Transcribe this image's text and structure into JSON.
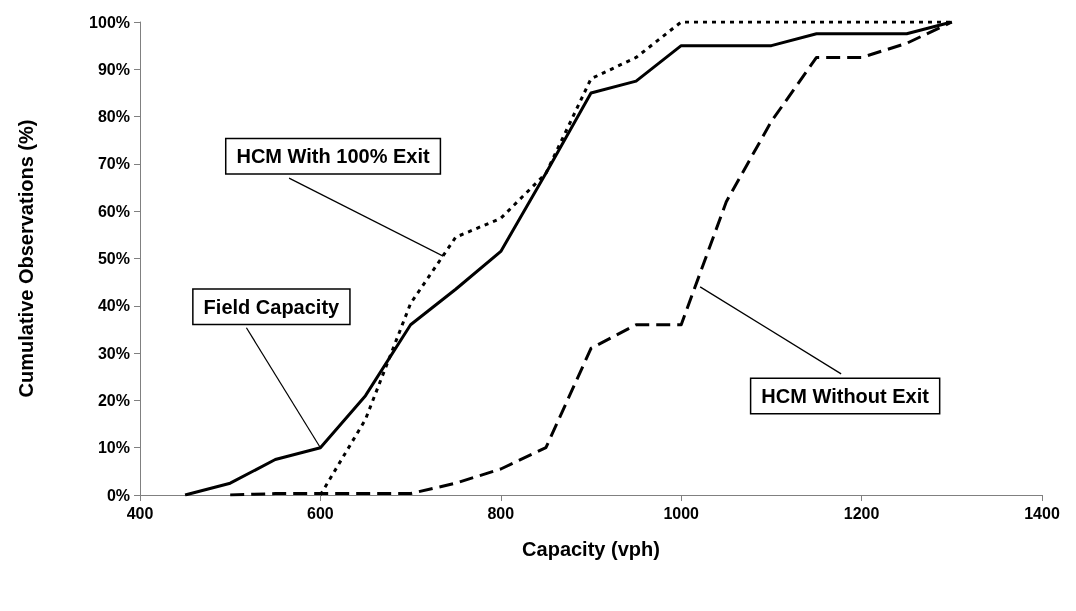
{
  "chart_data": {
    "type": "line",
    "xlabel": "Capacity (vph)",
    "ylabel": "Cumulative Observations (%)",
    "xlim": [
      400,
      1400
    ],
    "xticks": [
      400,
      600,
      800,
      1000,
      1200,
      1400
    ],
    "ylim": [
      0,
      100
    ],
    "yticks": [
      {
        "value": 0,
        "label": "0%"
      },
      {
        "value": 10,
        "label": "10%"
      },
      {
        "value": 20,
        "label": "20%"
      },
      {
        "value": 30,
        "label": "30%"
      },
      {
        "value": 40,
        "label": "40%"
      },
      {
        "value": 50,
        "label": "50%"
      },
      {
        "value": 60,
        "label": "60%"
      },
      {
        "value": 70,
        "label": "70%"
      },
      {
        "value": 80,
        "label": "80%"
      },
      {
        "value": 90,
        "label": "90%"
      },
      {
        "value": 100,
        "label": "100%"
      }
    ],
    "grid": false,
    "marker": "none",
    "series": [
      {
        "color": "#000000",
        "line_style": "solid",
        "x": [
          450,
          500,
          550,
          600,
          650,
          700,
          750,
          800,
          850,
          900,
          950,
          1000,
          1050,
          1100,
          1150,
          1200,
          1250,
          1300
        ],
        "values": [
          0,
          2.5,
          7.5,
          10,
          21,
          36,
          43.5,
          51.5,
          68,
          85,
          87.5,
          95,
          95,
          95,
          97.5,
          97.5,
          97.5,
          100
        ]
      },
      {
        "color": "#000000",
        "line_style": "dotted",
        "x": [
          600,
          650,
          700,
          750,
          800,
          850,
          900,
          950,
          1000,
          1050,
          1100,
          1150,
          1200,
          1250,
          1300
        ],
        "values": [
          0,
          16,
          40.5,
          54.5,
          58.5,
          68,
          88,
          92.5,
          100,
          100,
          100,
          100,
          100,
          100,
          100
        ]
      },
      {
        "color": "#000000",
        "line_style": "dashed",
        "x": [
          500,
          550,
          600,
          650,
          700,
          750,
          800,
          850,
          900,
          950,
          1000,
          1050,
          1100,
          1150,
          1200,
          1250,
          1300
        ],
        "values": [
          0,
          0.3,
          0.3,
          0.3,
          0.3,
          2.5,
          5.5,
          10,
          31,
          36,
          36,
          62,
          79,
          92.5,
          92.5,
          95.5,
          100
        ]
      }
    ],
    "annotations": [
      {
        "text": "HCM With 100% Exit",
        "x": 736,
        "y": 50.5
      },
      {
        "text": "Field Capacity",
        "x": 600,
        "y": 10
      },
      {
        "text": "HCM Without Exit",
        "x": 1021,
        "y": 44
      }
    ]
  }
}
